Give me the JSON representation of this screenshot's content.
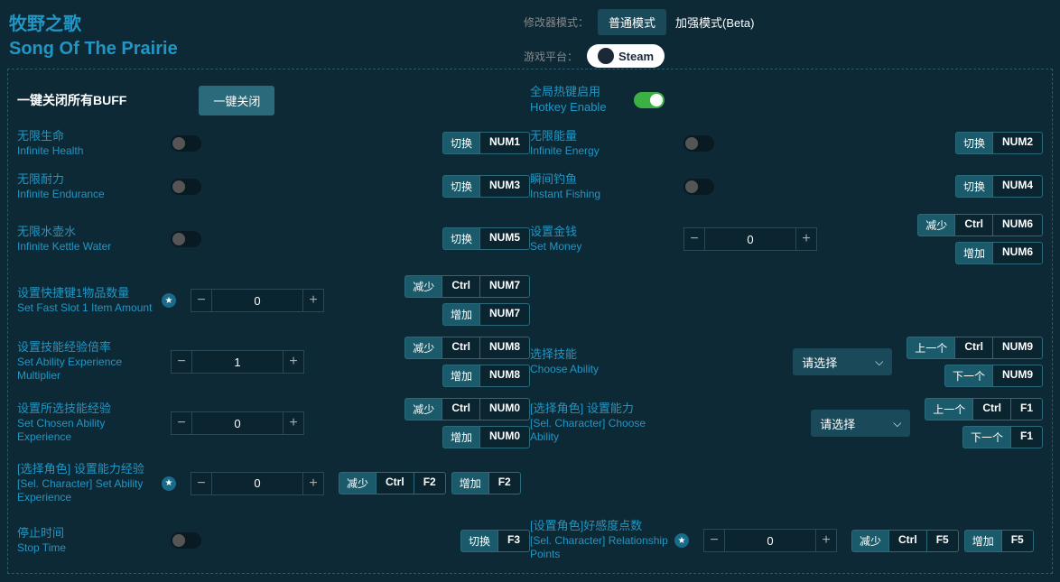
{
  "title": {
    "cn": "牧野之歌",
    "en": "Song Of The Prairie"
  },
  "top": {
    "modeLabel": "修改器模式：",
    "modeNormal": "普通模式",
    "modeEnhanced": "加强模式(Beta)",
    "platformLabel": "游戏平台：",
    "steam": "Steam"
  },
  "closeAll": {
    "label": "一键关闭所有BUFF",
    "button": "一键关闭"
  },
  "hotkey": {
    "cn": "全局热键启用",
    "en": "Hotkey Enable"
  },
  "kb": {
    "toggle": "切换",
    "dec": "减少",
    "inc": "增加",
    "prev": "上一个",
    "next": "下一个",
    "ctrl": "Ctrl"
  },
  "items": {
    "health": {
      "cn": "无限生命",
      "en": "Infinite Health",
      "key": "NUM1"
    },
    "energy": {
      "cn": "无限能量",
      "en": "Infinite Energy",
      "key": "NUM2"
    },
    "endurance": {
      "cn": "无限耐力",
      "en": "Infinite Endurance",
      "key": "NUM3"
    },
    "fishing": {
      "cn": "瞬间钓鱼",
      "en": "Instant Fishing",
      "key": "NUM4"
    },
    "kettle": {
      "cn": "无限水壶水",
      "en": "Infinite Kettle Water",
      "key": "NUM5"
    },
    "money": {
      "cn": "设置金钱",
      "en": "Set Money",
      "val": "0",
      "key": "NUM6"
    },
    "slot": {
      "cn": "设置快捷键1物品数量",
      "en": "Set Fast Slot 1 Item Amount",
      "val": "0",
      "key": "NUM7"
    },
    "expMul": {
      "cn": "设置技能经验倍率",
      "en": "Set Ability Experience Multiplier",
      "val": "1",
      "key": "NUM8"
    },
    "chooseAbility": {
      "cn": "选择技能",
      "en": "Choose Ability",
      "placeholder": "请选择",
      "key": "NUM9"
    },
    "chosenExp": {
      "cn": "设置所选技能经验",
      "en": "Set Chosen Ability Experience",
      "val": "0",
      "key": "NUM0"
    },
    "selCharAbility": {
      "cn": "[选择角色] 设置能力",
      "en": "[Sel. Character] Choose Ability",
      "placeholder": "请选择",
      "key": "F1"
    },
    "selCharExp": {
      "cn": "[选择角色] 设置能力经验",
      "en": "[Sel. Character] Set Ability Experience",
      "val": "0",
      "key": "F2"
    },
    "stopTime": {
      "cn": "停止时间",
      "en": "Stop Time",
      "key": "F3"
    },
    "relationship": {
      "cn": "[设置角色]好感度点数",
      "en": "[Sel. Character] Relationship Points",
      "val": "0",
      "key": "F5"
    }
  }
}
